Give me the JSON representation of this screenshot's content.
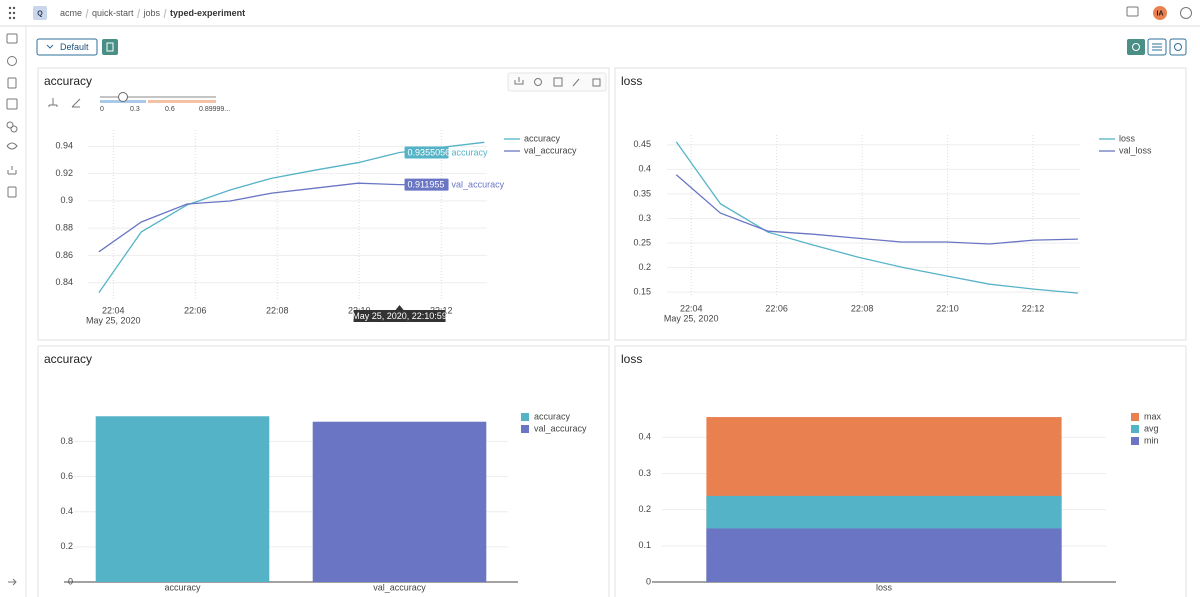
{
  "nav": {
    "logo": "Q",
    "breadcrumb": [
      "acme",
      "quick-start",
      "jobs",
      "typed-experiment"
    ],
    "avatar": "IA"
  },
  "toolbar": {
    "view": "Default"
  },
  "chart_data": [
    {
      "type": "line",
      "title": "accuracy",
      "x": [
        "22:03:39",
        "22:04:41",
        "22:05:48",
        "22:06:51",
        "22:07:52",
        "22:08:55",
        "22:09:58",
        "22:10:59",
        "22:12:01",
        "22:13:03"
      ],
      "series": [
        {
          "name": "accuracy",
          "color": "#55b3c8",
          "values": [
            0.8327,
            0.8772,
            0.897,
            0.908,
            0.9166,
            0.9225,
            0.928,
            0.9355056,
            0.9393,
            0.943
          ]
        },
        {
          "name": "val_accuracy",
          "color": "#6a76c4",
          "values": [
            0.8626,
            0.8845,
            0.8977,
            0.8999,
            0.9057,
            0.9093,
            0.913,
            0.911955,
            0.9115,
            null
          ]
        }
      ],
      "xlim": [
        "22:03:23",
        "22:13:07"
      ],
      "xticks": [
        "22:04",
        "22:06",
        "22:08",
        "22:10",
        "22:12"
      ],
      "x_sublabel": "May 25, 2020",
      "ylim": [
        0.828,
        0.952
      ],
      "yticks": [
        0.84,
        0.86,
        0.88,
        0.9,
        0.92,
        0.94
      ],
      "grid": true,
      "legend": "top-right",
      "slider_labels": [
        "0",
        "0.3",
        "0.6",
        "0.89999..."
      ],
      "hover": {
        "x": "22:10:59",
        "label": "May 25, 2020, 22:10:59"
      }
    },
    {
      "type": "line",
      "title": "loss",
      "x": [
        "22:03:39",
        "22:04:41",
        "22:05:48",
        "22:06:51",
        "22:07:52",
        "22:08:55",
        "22:09:58",
        "22:10:59",
        "22:12:01",
        "22:13:03"
      ],
      "series": [
        {
          "name": "loss",
          "color": "#55b3c8",
          "values": [
            0.456,
            0.33,
            0.272,
            0.246,
            0.222,
            0.201,
            0.183,
            0.166,
            0.156,
            0.148
          ]
        },
        {
          "name": "val_loss",
          "color": "#6a76c4",
          "values": [
            0.389,
            0.311,
            0.274,
            0.268,
            0.26,
            0.252,
            0.252,
            0.248,
            0.256,
            0.258
          ]
        }
      ],
      "xlim": [
        "22:03:26",
        "22:13:06"
      ],
      "xticks": [
        "22:04",
        "22:06",
        "22:08",
        "22:10",
        "22:12"
      ],
      "x_sublabel": "May 25, 2020",
      "ylim": [
        0.14,
        0.47
      ],
      "yticks": [
        0.15,
        0.2,
        0.25,
        0.3,
        0.35,
        0.4,
        0.45
      ],
      "grid": true,
      "legend": "top-right"
    },
    {
      "type": "bar",
      "title": "accuracy",
      "barmode": "overlay",
      "categories": [
        "accuracy",
        "val_accuracy"
      ],
      "series": [
        {
          "name": "accuracy",
          "color": "#55b3c8",
          "values": [
            0.943,
            null
          ]
        },
        {
          "name": "val_accuracy",
          "color": "#6a76c4",
          "values": [
            null,
            0.912
          ]
        }
      ],
      "ylim": [
        0,
        0.99
      ],
      "yticks": [
        0,
        0.2,
        0.4,
        0.6,
        0.8
      ],
      "grid": true,
      "legend": "top-right"
    },
    {
      "type": "bar",
      "title": "loss",
      "barmode": "overlay",
      "categories": [
        "loss"
      ],
      "series": [
        {
          "name": "max",
          "color": "#e8804f",
          "values": [
            0.456
          ]
        },
        {
          "name": "avg",
          "color": "#55b3c8",
          "values": [
            0.238
          ]
        },
        {
          "name": "min",
          "color": "#6a76c4",
          "values": [
            0.148
          ]
        }
      ],
      "ylim": [
        0,
        0.47
      ],
      "yticks": [
        0,
        0.1,
        0.2,
        0.3,
        0.4
      ],
      "grid": true,
      "legend": "top-right"
    }
  ]
}
